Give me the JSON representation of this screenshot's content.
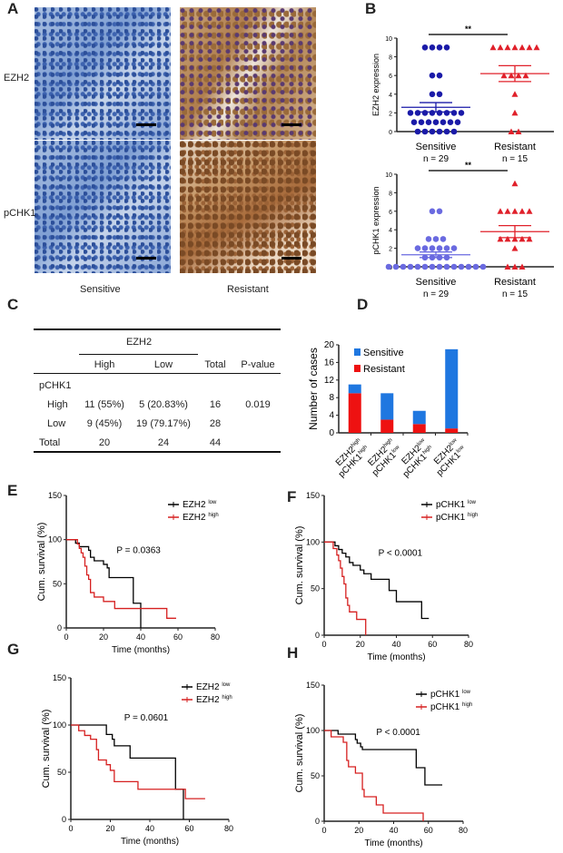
{
  "panel_labels": {
    "A": "A",
    "B": "B",
    "C": "C",
    "D": "D",
    "E": "E",
    "F": "F",
    "G": "G",
    "H": "H"
  },
  "panel_a": {
    "row_labels": [
      "EZH2",
      "pCHK1"
    ],
    "col_labels": [
      "Sensitive",
      "Resistant"
    ]
  },
  "table": {
    "group_header": "EZH2",
    "headers": [
      "High",
      "Low",
      "Total",
      "P-value"
    ],
    "section": "pCHK1",
    "rows": [
      {
        "label": "High",
        "high": "11 (55%)",
        "low": "5 (20.83%)",
        "total": "16",
        "p": "0.019"
      },
      {
        "label": "Low",
        "high": "9 (45%)",
        "low": "19 (79.17%)",
        "total": "28",
        "p": ""
      },
      {
        "label": "Total",
        "high": "20",
        "low": "24",
        "total": "44",
        "p": ""
      }
    ]
  },
  "colors": {
    "sensitive_dot": "#1a1aa8",
    "sensitive_dot2": "#6a6ae0",
    "resistant": "#e0202a",
    "bar_sensitive": "#1f77e0",
    "bar_resistant": "#ee1111",
    "km_low": "#000000",
    "km_high": "#d62020"
  },
  "chart_data": [
    {
      "id": "B1",
      "type": "scatter",
      "ylabel": "EZH2 expression",
      "ylim": [
        0,
        10
      ],
      "yticks": [
        0,
        2,
        4,
        6,
        8,
        10
      ],
      "significance": "**",
      "groups": [
        {
          "name": "Sensitive",
          "n_label": "n = 29",
          "values": [
            9,
            9,
            9,
            9,
            6,
            6,
            4,
            4,
            2,
            2,
            2,
            2,
            2,
            2,
            2,
            2,
            1,
            1,
            1,
            1,
            1,
            1,
            1,
            0,
            0,
            0,
            0,
            0,
            0
          ],
          "mean": 2.6,
          "sem": 0.5
        },
        {
          "name": "Resistant",
          "n_label": "n = 15",
          "values": [
            9,
            9,
            9,
            9,
            9,
            9,
            9,
            6,
            6,
            6,
            6,
            4,
            2,
            0,
            0
          ],
          "mean": 6.2,
          "sem": 0.85
        }
      ]
    },
    {
      "id": "B2",
      "type": "scatter",
      "ylabel": "pCHK1 expression",
      "ylim": [
        0,
        10
      ],
      "yticks": [
        0,
        2,
        4,
        6,
        8,
        10
      ],
      "significance": "**",
      "groups": [
        {
          "name": "Sensitive",
          "n_label": "n = 29",
          "values": [
            6,
            6,
            3,
            3,
            3,
            2,
            2,
            2,
            2,
            2,
            2,
            1,
            1,
            1,
            1,
            0,
            0,
            0,
            0,
            0,
            0,
            0,
            0,
            0,
            0,
            0,
            0,
            0,
            0
          ],
          "mean": 1.3,
          "sem": 0.3
        },
        {
          "name": "Resistant",
          "n_label": "n = 15",
          "values": [
            9,
            6,
            6,
            6,
            6,
            6,
            3,
            3,
            3,
            3,
            3,
            2,
            0,
            0,
            0
          ],
          "mean": 3.8,
          "sem": 0.65
        }
      ]
    },
    {
      "id": "D",
      "type": "bar",
      "stacked": true,
      "ylabel": "Number of cases",
      "ylim": [
        0,
        20
      ],
      "yticks": [
        0,
        4,
        8,
        12,
        16,
        20
      ],
      "categories": [
        [
          "EZH2",
          "high",
          "pCHK1",
          "high"
        ],
        [
          "EZH2",
          "high",
          "pCHK1",
          "low"
        ],
        [
          "EZH2",
          "low",
          "pCHK1",
          "high"
        ],
        [
          "EZH2",
          "low",
          "pCHK1",
          "low"
        ]
      ],
      "series": [
        {
          "name": "Resistant",
          "values": [
            9,
            3,
            2,
            1
          ]
        },
        {
          "name": "Sensitive",
          "values": [
            2,
            6,
            3,
            18
          ]
        }
      ],
      "legend": "top-left"
    },
    {
      "id": "E",
      "type": "line",
      "xlabel": "Time  (months)",
      "ylabel": "Cum. survival (%)",
      "xlim": [
        0,
        80
      ],
      "ylim": [
        0,
        150
      ],
      "xticks": [
        0,
        20,
        40,
        60,
        80
      ],
      "yticks": [
        0,
        50,
        100,
        150
      ],
      "annotation": "P  = 0.0363",
      "series": [
        {
          "name": "EZH2",
          "sup": "low",
          "points": [
            [
              0,
              100
            ],
            [
              5,
              96
            ],
            [
              7,
              92
            ],
            [
              12,
              88
            ],
            [
              13,
              80
            ],
            [
              15,
              76
            ],
            [
              20,
              72
            ],
            [
              22,
              68
            ],
            [
              23,
              57
            ],
            [
              36,
              28
            ],
            [
              40,
              0
            ]
          ]
        },
        {
          "name": "EZH2",
          "sup": "high",
          "points": [
            [
              0,
              100
            ],
            [
              6,
              95
            ],
            [
              7,
              90
            ],
            [
              8,
              85
            ],
            [
              9,
              80
            ],
            [
              10,
              70
            ],
            [
              11,
              60
            ],
            [
              12,
              55
            ],
            [
              13,
              40
            ],
            [
              15,
              35
            ],
            [
              20,
              30
            ],
            [
              26,
              22
            ],
            [
              54,
              11
            ],
            [
              59,
              11
            ]
          ]
        }
      ]
    },
    {
      "id": "F",
      "type": "line",
      "xlabel": "Time  (months)",
      "ylabel": "Cum. survival (%)",
      "xlim": [
        0,
        80
      ],
      "ylim": [
        0,
        150
      ],
      "xticks": [
        0,
        20,
        40,
        60,
        80
      ],
      "yticks": [
        0,
        50,
        100,
        150
      ],
      "annotation": "P  < 0.0001",
      "series": [
        {
          "name": "pCHK1",
          "sup": "low",
          "points": [
            [
              0,
              100
            ],
            [
              6,
              96
            ],
            [
              8,
              92
            ],
            [
              10,
              88
            ],
            [
              12,
              84
            ],
            [
              14,
              78
            ],
            [
              16,
              75
            ],
            [
              20,
              70
            ],
            [
              22,
              66
            ],
            [
              26,
              60
            ],
            [
              36,
              48
            ],
            [
              40,
              36
            ],
            [
              54,
              18
            ],
            [
              58,
              18
            ]
          ]
        },
        {
          "name": "pCHK1",
          "sup": "high",
          "points": [
            [
              0,
              100
            ],
            [
              5,
              93
            ],
            [
              7,
              86
            ],
            [
              8,
              80
            ],
            [
              9,
              72
            ],
            [
              10,
              63
            ],
            [
              11,
              55
            ],
            [
              12,
              40
            ],
            [
              13,
              32
            ],
            [
              14,
              25
            ],
            [
              18,
              17
            ],
            [
              23,
              0
            ]
          ]
        }
      ]
    },
    {
      "id": "G",
      "type": "line",
      "xlabel": "Time  (months)",
      "ylabel": "Cum. survival (%)",
      "xlim": [
        0,
        80
      ],
      "ylim": [
        0,
        150
      ],
      "xticks": [
        0,
        20,
        40,
        60,
        80
      ],
      "yticks": [
        0,
        50,
        100,
        150
      ],
      "annotation": "P  = 0.0601",
      "series": [
        {
          "name": "EZH2",
          "sup": "low",
          "points": [
            [
              0,
              100
            ],
            [
              18,
              90
            ],
            [
              21,
              85
            ],
            [
              22,
              78
            ],
            [
              30,
              65
            ],
            [
              53,
              32
            ],
            [
              57,
              0
            ]
          ]
        },
        {
          "name": "EZH2",
          "sup": "high",
          "points": [
            [
              0,
              100
            ],
            [
              4,
              94
            ],
            [
              7,
              89
            ],
            [
              10,
              85
            ],
            [
              13,
              74
            ],
            [
              14,
              63
            ],
            [
              18,
              58
            ],
            [
              20,
              52
            ],
            [
              22,
              40
            ],
            [
              34,
              32
            ],
            [
              58,
              22
            ],
            [
              68,
              22
            ]
          ]
        }
      ]
    },
    {
      "id": "H",
      "type": "line",
      "xlabel": "Time  (months)",
      "ylabel": "Cum. survival (%)",
      "xlim": [
        0,
        80
      ],
      "ylim": [
        0,
        150
      ],
      "xticks": [
        0,
        20,
        40,
        60,
        80
      ],
      "yticks": [
        0,
        50,
        100,
        150
      ],
      "annotation": "P  < 0.0001",
      "series": [
        {
          "name": "pCHK1",
          "sup": "low",
          "points": [
            [
              0,
              100
            ],
            [
              8,
              96
            ],
            [
              18,
              90
            ],
            [
              19,
              86
            ],
            [
              21,
              82
            ],
            [
              22,
              79
            ],
            [
              53,
              59
            ],
            [
              58,
              40
            ],
            [
              68,
              40
            ]
          ]
        },
        {
          "name": "pCHK1",
          "sup": "high",
          "points": [
            [
              0,
              100
            ],
            [
              4,
              93
            ],
            [
              11,
              87
            ],
            [
              13,
              67
            ],
            [
              14,
              60
            ],
            [
              18,
              53
            ],
            [
              22,
              35
            ],
            [
              23,
              27
            ],
            [
              30,
              18
            ],
            [
              34,
              9
            ],
            [
              57,
              0
            ]
          ]
        }
      ]
    }
  ]
}
